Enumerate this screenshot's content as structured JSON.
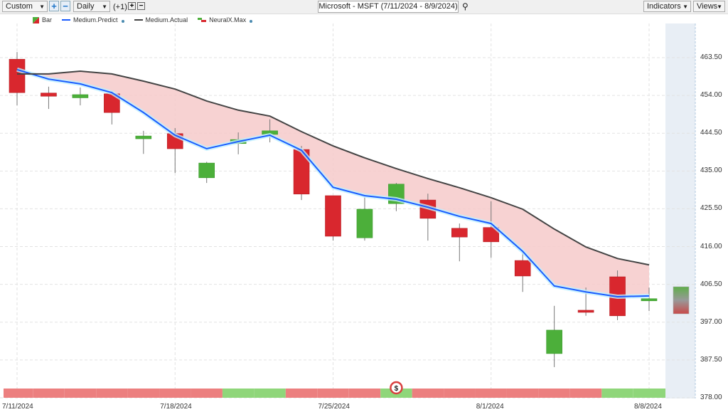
{
  "toolbar": {
    "range": "Custom",
    "interval": "Daily",
    "offset": "(+1)",
    "title": "Microsoft - MSFT (7/11/2024 - 8/9/2024)",
    "indicators": "Indicators",
    "views": "Views"
  },
  "legend": [
    {
      "label": "Bar"
    },
    {
      "label": "Medium.Predict",
      "color": "#1a5cff"
    },
    {
      "label": "Medium.Actual",
      "color": "#444444"
    },
    {
      "label": "NeuralX.Max"
    }
  ],
  "colors": {
    "up": "#4caf3a",
    "down": "#d9272e",
    "band": "#f6caca",
    "signal_up": "#8fd67a",
    "signal_down": "#ec7f7f",
    "forecast_zone": "#e8eef5"
  },
  "chart_data": {
    "type": "candlestick",
    "ylim": [
      378,
      468
    ],
    "yticks": [
      "463.50",
      "454.00",
      "444.50",
      "435.00",
      "425.50",
      "416.00",
      "406.50",
      "397.00",
      "387.50",
      "378.00"
    ],
    "x": [
      "7/11/2024",
      "7/12/2024",
      "7/15/2024",
      "7/16/2024",
      "7/17/2024",
      "7/18/2024",
      "7/19/2024",
      "7/22/2024",
      "7/23/2024",
      "7/24/2024",
      "7/25/2024",
      "7/26/2024",
      "7/29/2024",
      "7/30/2024",
      "7/31/2024",
      "8/1/2024",
      "8/2/2024",
      "8/5/2024",
      "8/6/2024",
      "8/7/2024",
      "8/8/2024"
    ],
    "xtick_labels": [
      "7/11/2024",
      "7/18/2024",
      "7/25/2024",
      "8/1/2024",
      "8/8/2024"
    ],
    "open": [
      463.1,
      454.6,
      453.4,
      454.4,
      443.1,
      444.4,
      433.3,
      441.9,
      444.2,
      440.4,
      428.8,
      418.2,
      426.8,
      427.7,
      420.6,
      420.8,
      412.5,
      389.1,
      400.0,
      408.4,
      402.5
    ],
    "high": [
      464.9,
      456.2,
      456.0,
      455.1,
      445.1,
      445.8,
      437.3,
      444.7,
      448.0,
      441.3,
      428.8,
      428.4,
      432.0,
      429.3,
      421.8,
      427.4,
      415.0,
      401.1,
      405.7,
      410.0,
      405.7
    ],
    "low": [
      451.5,
      450.6,
      451.5,
      446.7,
      439.3,
      434.5,
      432.0,
      439.2,
      442.2,
      427.7,
      417.5,
      417.5,
      424.9,
      417.5,
      412.3,
      413.2,
      404.6,
      385.7,
      398.6,
      397.5,
      399.8
    ],
    "close": [
      454.7,
      453.8,
      454.2,
      449.7,
      443.8,
      440.6,
      437.0,
      442.9,
      445.1,
      429.2,
      418.6,
      425.4,
      431.7,
      423.1,
      418.4,
      417.2,
      408.6,
      395.0,
      399.6,
      398.6,
      402.9
    ],
    "series": [
      {
        "name": "Medium.Predict",
        "values": [
          460.5,
          458.1,
          456.9,
          454.7,
          449.7,
          444.0,
          440.6,
          442.4,
          444.0,
          440.2,
          430.9,
          428.8,
          427.9,
          425.9,
          423.6,
          421.8,
          414.8,
          406.1,
          404.6,
          403.4,
          403.6
        ]
      },
      {
        "name": "Medium.Actual",
        "values": [
          459.4,
          459.4,
          460.1,
          459.4,
          457.6,
          455.6,
          452.6,
          450.3,
          448.8,
          444.9,
          441.3,
          438.3,
          435.6,
          433.1,
          430.8,
          428.3,
          425.4,
          420.4,
          415.9,
          413.0,
          411.4
        ]
      }
    ],
    "forecast": {
      "date": "8/9/2024",
      "high": 405.9,
      "low": 399.1
    },
    "signal": [
      "down",
      "down",
      "down",
      "down",
      "down",
      "down",
      "down",
      "up",
      "up",
      "down",
      "down",
      "down",
      "up",
      "down",
      "down",
      "down",
      "down",
      "down",
      "down",
      "up",
      "up"
    ],
    "trade_marker": {
      "date": "7/29/2024",
      "icon": "dollar-icon",
      "label": "$"
    }
  }
}
